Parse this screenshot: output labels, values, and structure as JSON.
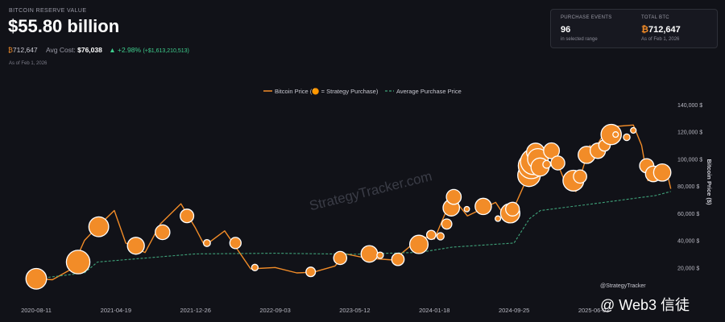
{
  "header": {
    "label": "BITCOIN RESERVE VALUE",
    "value": "$55.80 billion",
    "btc_symbol": "₿",
    "btc_amount": "712,647",
    "avg_cost_label": "Avg Cost:",
    "avg_cost": "$76,038",
    "change_pct": "▲ +2.98%",
    "change_abs": "(+$1,613,210,513)",
    "as_of": "As of Feb 1, 2026"
  },
  "card": {
    "events_title": "PURCHASE EVENTS",
    "events_value": "96",
    "events_sub": "in selected range",
    "btc_title": "TOTAL BTC",
    "btc_symbol": "₿",
    "btc_value": "712,647",
    "btc_sub": "As of Feb 1, 2026"
  },
  "watermark": "StrategyTracker.com",
  "footer": {
    "handle": "@StrategyTracker",
    "brand": "@ Web3 信徒"
  },
  "colors": {
    "background": "#111218",
    "price_line": "#f28c28",
    "bubble": "#f28c28",
    "avg_line": "#3fa37a"
  },
  "chart_data": {
    "type": "line",
    "legend": [
      "Bitcoin Price (🟠 = Strategy Purchase)",
      "Average Purchase Price"
    ],
    "legend_position": "top-center",
    "ylabel": "Bitcoin Price ($)",
    "y_axis_side": "right",
    "ylim": [
      0,
      140000
    ],
    "y_ticks": [
      "140,000 $",
      "120,000 $",
      "100,000 $",
      "80,000 $",
      "60,000 $",
      "40,000 $",
      "20,000 $"
    ],
    "y_tick_values": [
      140000,
      120000,
      100000,
      80000,
      60000,
      40000,
      20000
    ],
    "x_ticks": [
      "2020-08-11",
      "2021-04-19",
      "2021-12-26",
      "2022-09-03",
      "2023-05-12",
      "2024-01-18",
      "2024-09-25",
      "2025-06-03"
    ],
    "x_tick_values": [
      "2020-08-11",
      "2021-04-19",
      "2021-12-26",
      "2022-09-03",
      "2023-05-12",
      "2024-01-18",
      "2024-09-25",
      "2025-06-03"
    ],
    "grid": false,
    "series": [
      {
        "name": "Bitcoin Price",
        "style": "solid",
        "x": [
          "2020-08-11",
          "2020-10-01",
          "2020-12-01",
          "2021-01-10",
          "2021-02-20",
          "2021-04-14",
          "2021-05-20",
          "2021-07-20",
          "2021-09-06",
          "2021-11-10",
          "2021-12-26",
          "2022-01-24",
          "2022-03-28",
          "2022-06-18",
          "2022-09-03",
          "2022-11-10",
          "2023-01-01",
          "2023-03-10",
          "2023-04-14",
          "2023-06-15",
          "2023-09-11",
          "2023-10-25",
          "2023-12-05",
          "2024-01-18",
          "2024-03-14",
          "2024-05-01",
          "2024-07-29",
          "2024-09-06",
          "2024-09-25",
          "2024-11-13",
          "2024-12-17",
          "2025-01-20",
          "2025-03-10",
          "2025-04-08",
          "2025-05-22",
          "2025-06-03",
          "2025-07-14",
          "2025-08-14",
          "2025-10-06",
          "2025-11-01",
          "2025-11-21",
          "2025-12-15",
          "2026-01-14",
          "2026-02-01"
        ],
        "y": [
          11700,
          11000,
          19000,
          40000,
          50000,
          62000,
          38000,
          31000,
          52000,
          67000,
          49000,
          36000,
          47000,
          19000,
          20000,
          16000,
          16500,
          21000,
          30000,
          27000,
          25500,
          34000,
          43000,
          41000,
          72000,
          58000,
          68000,
          54000,
          64000,
          90000,
          106000,
          108000,
          80000,
          76000,
          110000,
          106000,
          122000,
          124000,
          125000,
          110000,
          84000,
          87000,
          96000,
          78000
        ]
      },
      {
        "name": "Average Purchase Price",
        "style": "dashed",
        "x": [
          "2020-08-11",
          "2021-01-10",
          "2021-02-20",
          "2021-12-26",
          "2022-09-03",
          "2023-05-12",
          "2023-12-05",
          "2024-03-14",
          "2024-09-25",
          "2024-11-13",
          "2024-12-17",
          "2025-06-03",
          "2025-12-15",
          "2026-02-01"
        ],
        "y": [
          11700,
          16000,
          24000,
          30000,
          30500,
          29800,
          31200,
          35000,
          38000,
          56000,
          62000,
          67000,
          73000,
          76000
        ]
      }
    ],
    "purchases": {
      "x": [
        "2020-08-11",
        "2020-12-21",
        "2021-02-24",
        "2021-06-21",
        "2021-09-13",
        "2021-11-29",
        "2022-01-31",
        "2022-05-01",
        "2022-07-01",
        "2022-12-24",
        "2023-03-27",
        "2023-06-27",
        "2023-07-31",
        "2023-09-25",
        "2023-11-30",
        "2024-01-08",
        "2024-02-06",
        "2024-02-26",
        "2024-03-11",
        "2024-03-19",
        "2024-04-29",
        "2024-06-20",
        "2024-08-05",
        "2024-09-13",
        "2024-09-20",
        "2024-11-11",
        "2024-11-18",
        "2024-11-25",
        "2024-12-02",
        "2024-12-09",
        "2024-12-16",
        "2025-01-06",
        "2025-01-21",
        "2025-02-10",
        "2025-03-31",
        "2025-04-21",
        "2025-05-12",
        "2025-06-16",
        "2025-07-07",
        "2025-07-28",
        "2025-08-11",
        "2025-09-15",
        "2025-10-06",
        "2025-11-17",
        "2025-12-08",
        "2026-01-05"
      ],
      "y": [
        11700,
        24000,
        50000,
        36000,
        46000,
        58000,
        38000,
        38000,
        20000,
        16800,
        27000,
        30000,
        29000,
        26000,
        37000,
        44000,
        43000,
        52000,
        64000,
        72000,
        63000,
        65000,
        56000,
        60000,
        63000,
        88000,
        95000,
        98000,
        105000,
        100000,
        94000,
        96000,
        106000,
        97000,
        84000,
        87000,
        103000,
        106000,
        110000,
        118000,
        118000,
        116000,
        121000,
        95000,
        89000,
        90000
      ],
      "size_btc": [
        21454,
        29646,
        19452,
        13005,
        8957,
        7002,
        660,
        4167,
        480,
        2395,
        6455,
        12333,
        467,
        5445,
        16130,
        2110,
        850,
        3000,
        12000,
        9245,
        122,
        11931,
        169,
        18300,
        7420,
        27200,
        51780,
        55500,
        15400,
        21550,
        15350,
        1070,
        11000,
        7633,
        22048,
        6556,
        13390,
        10100,
        4225,
        21021,
        155,
        525,
        220,
        8178,
        10624,
        13627
      ]
    }
  }
}
